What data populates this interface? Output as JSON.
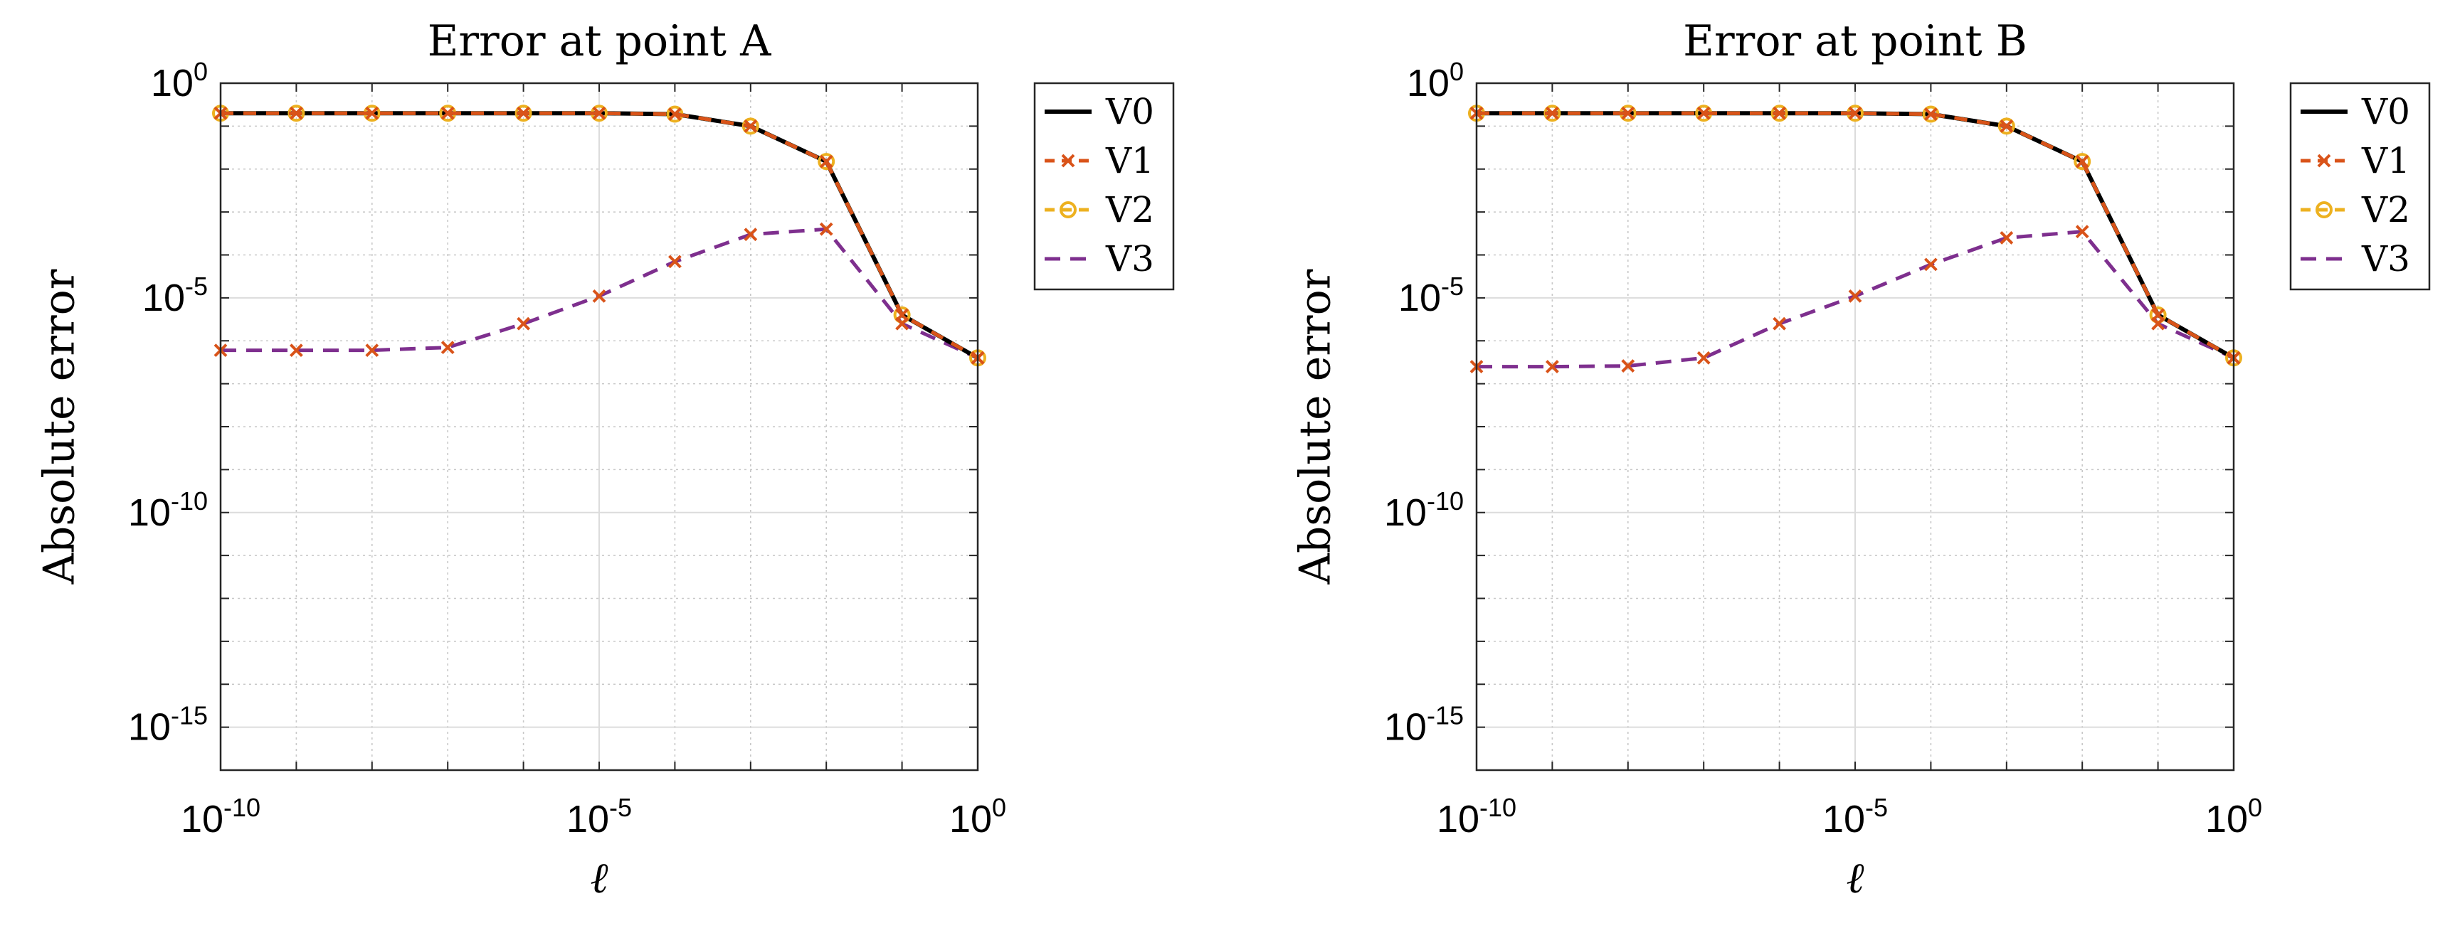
{
  "chart_data": [
    {
      "type": "line",
      "title": "Error at point A",
      "xlabel": "ℓ",
      "ylabel": "Absolute error",
      "xscale": "log",
      "yscale": "log",
      "xlim": [
        1e-10,
        1
      ],
      "ylim": [
        1e-16,
        1
      ],
      "xticks": [
        {
          "base": "10",
          "exp": "-10"
        },
        {
          "base": "10",
          "exp": "-5"
        },
        {
          "base": "10",
          "exp": "0"
        }
      ],
      "yticks": [
        {
          "base": "10",
          "exp": "0"
        },
        {
          "base": "10",
          "exp": "-5"
        },
        {
          "base": "10",
          "exp": "-10"
        },
        {
          "base": "10",
          "exp": "-15"
        }
      ],
      "grid": true,
      "legend_position": "outside-top-right",
      "x": [
        1e-10,
        1e-09,
        1e-08,
        1e-07,
        1e-06,
        1e-05,
        0.0001,
        0.001,
        0.01,
        0.1,
        1
      ],
      "series": [
        {
          "name": "V0",
          "color": "#000000",
          "style": "solid",
          "marker": "none",
          "values": [
            0.2,
            0.2,
            0.2,
            0.2,
            0.2,
            0.2,
            0.19,
            0.1,
            0.015,
            4e-06,
            4e-07
          ]
        },
        {
          "name": "V1",
          "color": "#D95319",
          "style": "dashed",
          "marker": "x",
          "values": [
            0.2,
            0.2,
            0.2,
            0.2,
            0.2,
            0.2,
            0.19,
            0.1,
            0.015,
            4e-06,
            4e-07
          ]
        },
        {
          "name": "V2",
          "color": "#EDB120",
          "style": "dashed",
          "marker": "o",
          "values": [
            0.2,
            0.2,
            0.2,
            0.2,
            0.2,
            0.2,
            0.19,
            0.1,
            0.015,
            4e-06,
            4e-07
          ]
        },
        {
          "name": "V3",
          "color": "#7E2F8E",
          "style": "dashed",
          "marker": "none",
          "values": [
            6e-07,
            6e-07,
            6e-07,
            7e-07,
            2.5e-06,
            1.1e-05,
            7e-05,
            0.0003,
            0.0004,
            2.5e-06,
            4e-07
          ]
        }
      ],
      "marker_points": [
        {
          "series": "V1",
          "values": [
            6e-07,
            6e-07,
            6e-07,
            7e-07,
            2.5e-06,
            1.1e-05,
            7e-05,
            0.0003,
            0.0004,
            2.5e-06,
            4e-07
          ]
        }
      ]
    },
    {
      "type": "line",
      "title": "Error at point B",
      "xlabel": "ℓ",
      "ylabel": "Absolute error",
      "xscale": "log",
      "yscale": "log",
      "xlim": [
        1e-10,
        1
      ],
      "ylim": [
        1e-16,
        1
      ],
      "xticks": [
        {
          "base": "10",
          "exp": "-10"
        },
        {
          "base": "10",
          "exp": "-5"
        },
        {
          "base": "10",
          "exp": "0"
        }
      ],
      "yticks": [
        {
          "base": "10",
          "exp": "0"
        },
        {
          "base": "10",
          "exp": "-5"
        },
        {
          "base": "10",
          "exp": "-10"
        },
        {
          "base": "10",
          "exp": "-15"
        }
      ],
      "grid": true,
      "legend_position": "outside-top-right",
      "x": [
        1e-10,
        1e-09,
        1e-08,
        1e-07,
        1e-06,
        1e-05,
        0.0001,
        0.001,
        0.01,
        0.1,
        1
      ],
      "series": [
        {
          "name": "V0",
          "color": "#000000",
          "style": "solid",
          "marker": "none",
          "values": [
            0.2,
            0.2,
            0.2,
            0.2,
            0.2,
            0.2,
            0.19,
            0.1,
            0.015,
            4e-06,
            4e-07
          ]
        },
        {
          "name": "V1",
          "color": "#D95319",
          "style": "dashed",
          "marker": "x",
          "values": [
            0.2,
            0.2,
            0.2,
            0.2,
            0.2,
            0.2,
            0.19,
            0.1,
            0.015,
            4e-06,
            4e-07
          ]
        },
        {
          "name": "V2",
          "color": "#EDB120",
          "style": "dashed",
          "marker": "o",
          "values": [
            0.2,
            0.2,
            0.2,
            0.2,
            0.2,
            0.2,
            0.19,
            0.1,
            0.015,
            4e-06,
            4e-07
          ]
        },
        {
          "name": "V3",
          "color": "#7E2F8E",
          "style": "dashed",
          "marker": "none",
          "values": [
            2.5e-07,
            2.5e-07,
            2.6e-07,
            4e-07,
            2.5e-06,
            1.1e-05,
            6e-05,
            0.00025,
            0.00035,
            2.5e-06,
            4e-07
          ]
        }
      ],
      "marker_points": [
        {
          "series": "V1",
          "values": [
            2.5e-07,
            2.5e-07,
            2.6e-07,
            4e-07,
            2.5e-06,
            1.1e-05,
            6e-05,
            0.00025,
            0.00035,
            2.5e-06,
            4e-07
          ]
        }
      ]
    }
  ]
}
